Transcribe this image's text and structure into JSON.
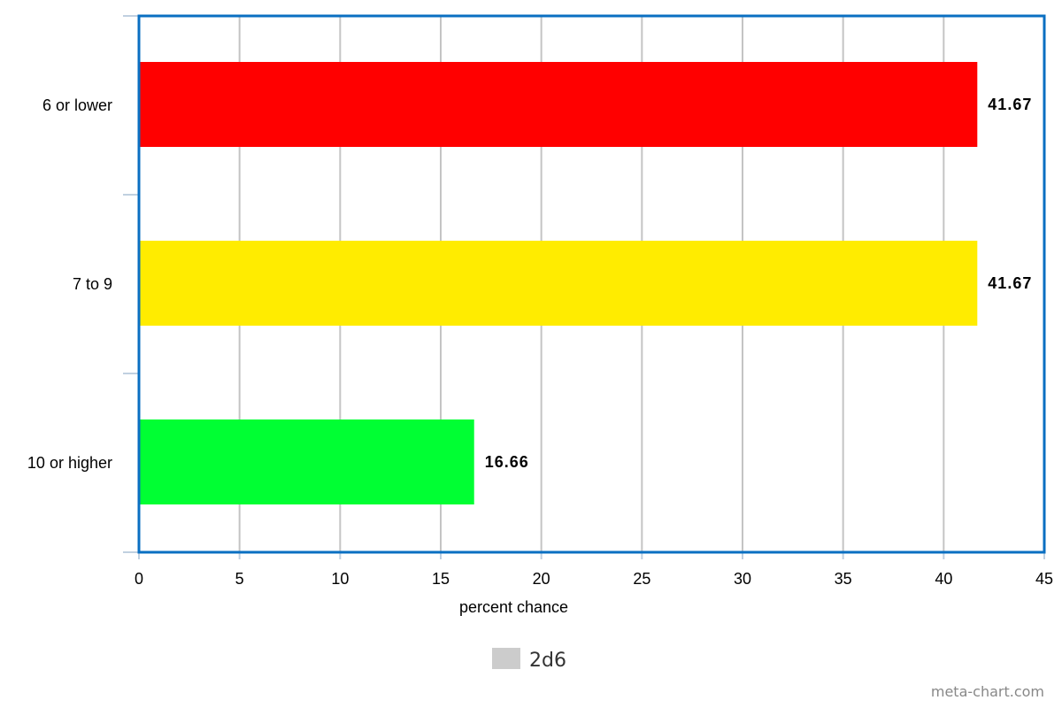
{
  "chart_data": {
    "type": "bar",
    "orientation": "horizontal",
    "categories": [
      "6 or lower",
      "7 to 9",
      "10 or higher"
    ],
    "series": [
      {
        "name": "2d6",
        "values": [
          41.67,
          41.67,
          16.66
        ],
        "colors": [
          "#ff0000",
          "#ffec00",
          "#00ff33"
        ]
      }
    ],
    "data_labels": [
      "41.67",
      "41.67",
      "16.66"
    ],
    "xlabel": "percent chance",
    "ylabel": "",
    "xlim": [
      0,
      45
    ],
    "x_ticks": [
      0,
      5,
      10,
      15,
      20,
      25,
      30,
      35,
      40,
      45
    ],
    "grid": "vertical",
    "legend": {
      "position": "bottom",
      "entries": [
        "2d6"
      ],
      "swatch_color": "#cccccc"
    },
    "frame_color": "#0a6fc2"
  },
  "watermark": "meta-chart.com"
}
